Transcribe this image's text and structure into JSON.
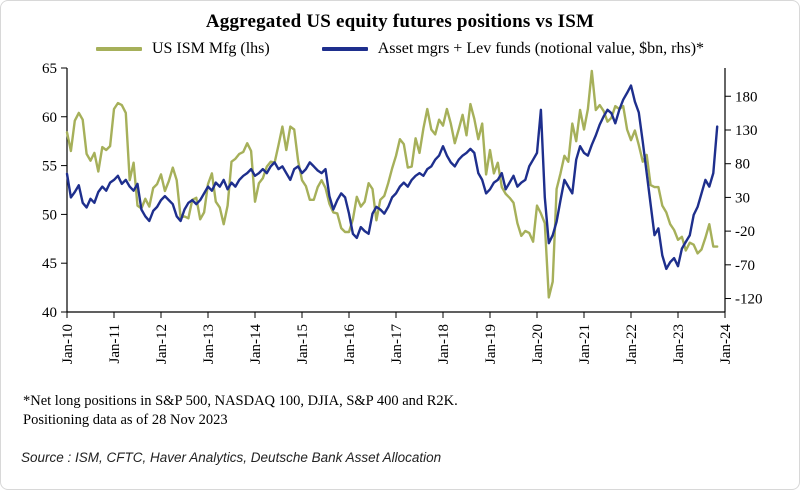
{
  "chart_data": {
    "type": "line",
    "title": "Aggregated US equity futures positions vs ISM",
    "x_tick_labels": [
      "Jan-10",
      "Jan-11",
      "Jan-12",
      "Jan-13",
      "Jan-14",
      "Jan-15",
      "Jan-16",
      "Jan-17",
      "Jan-18",
      "Jan-19",
      "Jan-20",
      "Jan-21",
      "Jan-22",
      "Jan-23",
      "Jan-24"
    ],
    "x_tick_interval_months": 12,
    "x_total_months": 168,
    "left_axis": {
      "min": 40,
      "max": 65,
      "ticks": [
        65,
        60,
        55,
        50,
        45,
        40
      ]
    },
    "right_axis": {
      "min": -140,
      "max": 222,
      "ticks": [
        180,
        130,
        80,
        30,
        -20,
        -70,
        -120
      ]
    },
    "grid": false,
    "legend_position": "top",
    "series": [
      {
        "name": "US ISM Mfg (lhs)",
        "axis": "left",
        "color": "#a6b05a",
        "values": [
          58.4,
          56.5,
          59.6,
          60.4,
          59.7,
          56.2,
          55.5,
          56.3,
          54.4,
          56.9,
          56.6,
          57.0,
          60.8,
          61.4,
          61.2,
          60.4,
          53.5,
          55.3,
          50.9,
          50.6,
          51.6,
          50.8,
          52.7,
          53.1,
          54.1,
          52.4,
          53.4,
          54.8,
          53.5,
          49.7,
          49.8,
          49.6,
          51.5,
          51.7,
          49.5,
          50.2,
          53.1,
          54.2,
          51.3,
          50.7,
          49.0,
          50.9,
          55.4,
          55.7,
          56.2,
          56.4,
          57.3,
          56.5,
          51.3,
          53.2,
          53.7,
          54.9,
          55.4,
          55.3,
          57.1,
          59.0,
          56.6,
          59.0,
          58.7,
          55.5,
          53.5,
          52.9,
          51.5,
          51.5,
          52.8,
          53.5,
          52.7,
          51.1,
          50.2,
          50.1,
          48.6,
          48.2,
          48.2,
          49.5,
          51.8,
          50.8,
          51.3,
          53.2,
          52.6,
          49.4,
          51.5,
          51.9,
          53.2,
          54.7,
          56.0,
          57.7,
          57.2,
          54.8,
          54.9,
          57.8,
          56.3,
          58.8,
          60.8,
          58.7,
          58.2,
          59.7,
          59.1,
          60.8,
          59.3,
          57.3,
          58.7,
          60.2,
          58.1,
          61.3,
          59.8,
          57.7,
          59.3,
          54.1,
          56.6,
          54.2,
          55.3,
          52.8,
          52.1,
          51.7,
          51.2,
          49.1,
          47.8,
          48.3,
          48.1,
          47.2,
          50.9,
          50.1,
          49.1,
          41.5,
          43.1,
          52.6,
          54.2,
          56.0,
          55.4,
          59.3,
          57.5,
          60.7,
          58.7,
          60.8,
          64.7,
          60.7,
          61.2,
          60.6,
          59.5,
          59.9,
          61.1,
          60.8,
          61.1,
          58.7,
          57.6,
          58.6,
          57.1,
          55.4,
          56.1,
          53.0,
          52.8,
          52.8,
          50.9,
          50.2,
          49.0,
          48.4,
          47.4,
          47.7,
          46.3,
          47.1,
          46.9,
          46.0,
          46.4,
          47.6,
          49.0,
          46.7,
          46.7
        ]
      },
      {
        "name": "Asset mgrs + Lev funds (notional value, $bn, rhs)*",
        "axis": "right",
        "color": "#1e2f8d",
        "values": [
          65,
          30,
          38,
          48,
          22,
          15,
          28,
          22,
          38,
          46,
          40,
          52,
          56,
          62,
          50,
          56,
          46,
          40,
          50,
          12,
          2,
          -5,
          10,
          16,
          26,
          32,
          26,
          20,
          2,
          -5,
          12,
          22,
          26,
          20,
          26,
          36,
          46,
          40,
          52,
          46,
          56,
          42,
          52,
          46,
          56,
          62,
          66,
          72,
          62,
          66,
          72,
          66,
          76,
          82,
          72,
          76,
          66,
          56,
          72,
          76,
          66,
          72,
          82,
          76,
          70,
          66,
          72,
          32,
          12,
          26,
          36,
          30,
          6,
          -24,
          -30,
          -14,
          -20,
          -24,
          6,
          16,
          12,
          6,
          16,
          30,
          36,
          46,
          52,
          46,
          56,
          62,
          66,
          62,
          72,
          76,
          86,
          92,
          106,
          92,
          82,
          76,
          86,
          92,
          96,
          102,
          96,
          66,
          56,
          36,
          42,
          52,
          56,
          66,
          42,
          52,
          62,
          46,
          52,
          56,
          76,
          86,
          96,
          160,
          30,
          -38,
          -26,
          -6,
          26,
          56,
          46,
          36,
          86,
          106,
          96,
          92,
          108,
          122,
          138,
          150,
          160,
          155,
          140,
          160,
          175,
          185,
          196,
          172,
          156,
          112,
          66,
          20,
          -26,
          -16,
          -56,
          -76,
          -66,
          -60,
          -72,
          -46,
          -36,
          -26,
          4,
          16,
          36,
          56,
          46,
          66,
          135
        ]
      }
    ]
  },
  "footnote": {
    "line1": "*Net long positions in S&P 500, NASDAQ 100, DJIA, S&P 400 and R2K.",
    "line2": "Positioning data as of 28 Nov 2023"
  },
  "source": "Source : ISM, CFTC, Haver Analytics, Deutsche Bank Asset Allocation"
}
